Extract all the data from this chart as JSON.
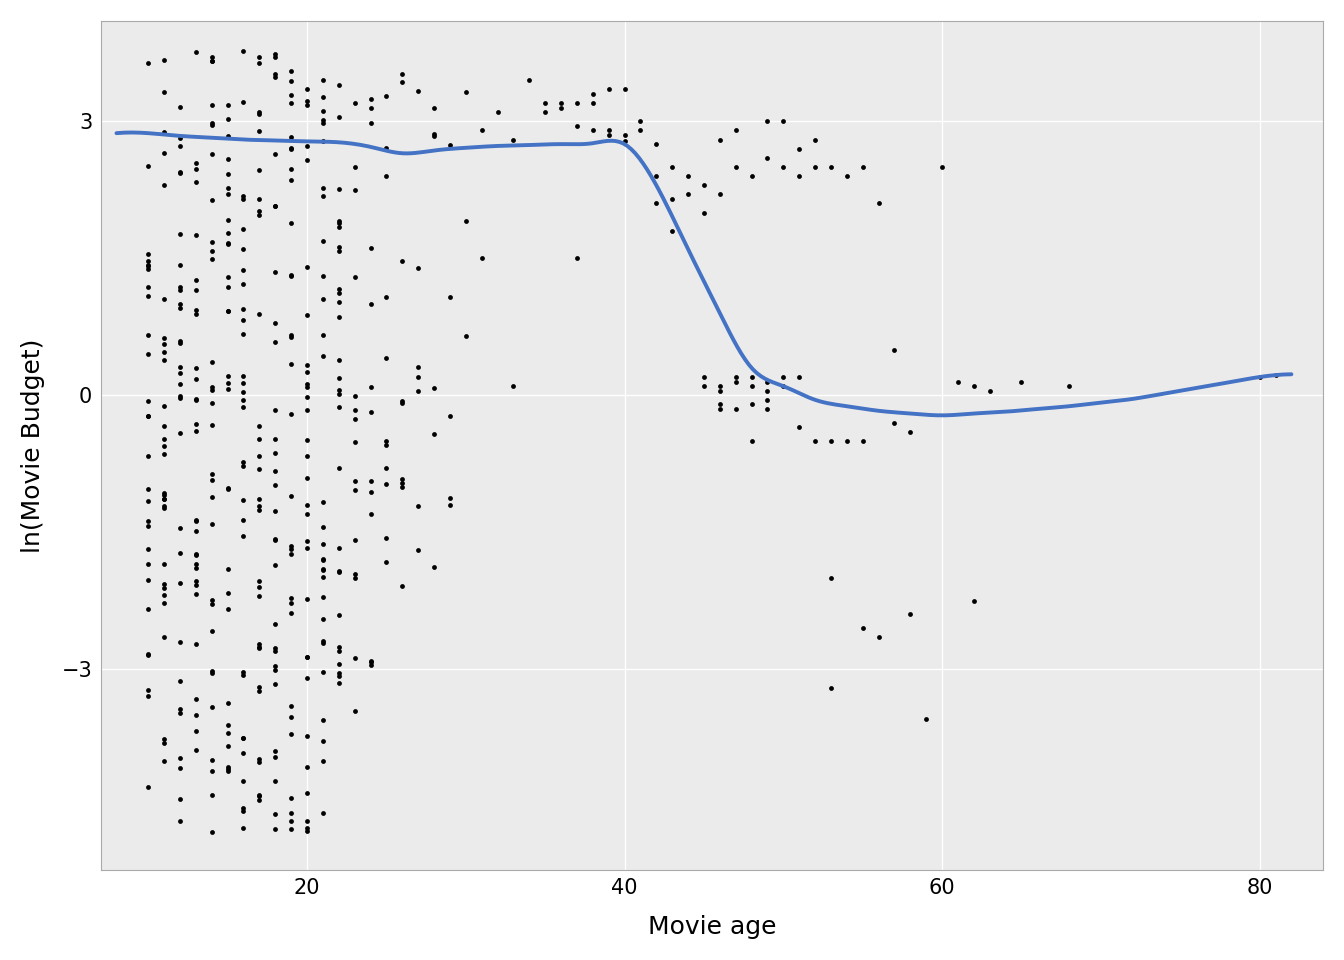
{
  "xlabel": "Movie age",
  "ylabel": "ln(Movie Budget)",
  "xlim": [
    7,
    84
  ],
  "ylim": [
    -5.2,
    4.1
  ],
  "xticks": [
    20,
    40,
    60,
    80
  ],
  "yticks": [
    -3,
    0,
    3
  ],
  "background_color": "#ffffff",
  "panel_background": "#ebebeb",
  "grid_color": "#ffffff",
  "point_color": "#000000",
  "point_size": 12,
  "loess_color": "#4472C4",
  "loess_lw": 2.8,
  "loess_x": [
    8,
    10,
    12,
    14,
    16,
    18,
    20,
    22,
    24,
    26,
    28,
    30,
    32,
    34,
    36,
    38,
    40,
    42,
    44,
    46,
    48,
    50,
    52,
    54,
    56,
    58,
    60,
    62,
    64,
    66,
    68,
    70,
    72,
    74,
    76,
    78,
    80,
    82
  ],
  "loess_y": [
    2.87,
    2.87,
    2.84,
    2.82,
    2.8,
    2.79,
    2.78,
    2.77,
    2.72,
    2.65,
    2.68,
    2.71,
    2.73,
    2.74,
    2.75,
    2.76,
    2.75,
    2.3,
    1.6,
    0.9,
    0.3,
    0.1,
    -0.05,
    -0.12,
    -0.17,
    -0.2,
    -0.22,
    -0.2,
    -0.18,
    -0.15,
    -0.12,
    -0.08,
    -0.04,
    0.02,
    0.08,
    0.14,
    0.2,
    0.23
  ]
}
